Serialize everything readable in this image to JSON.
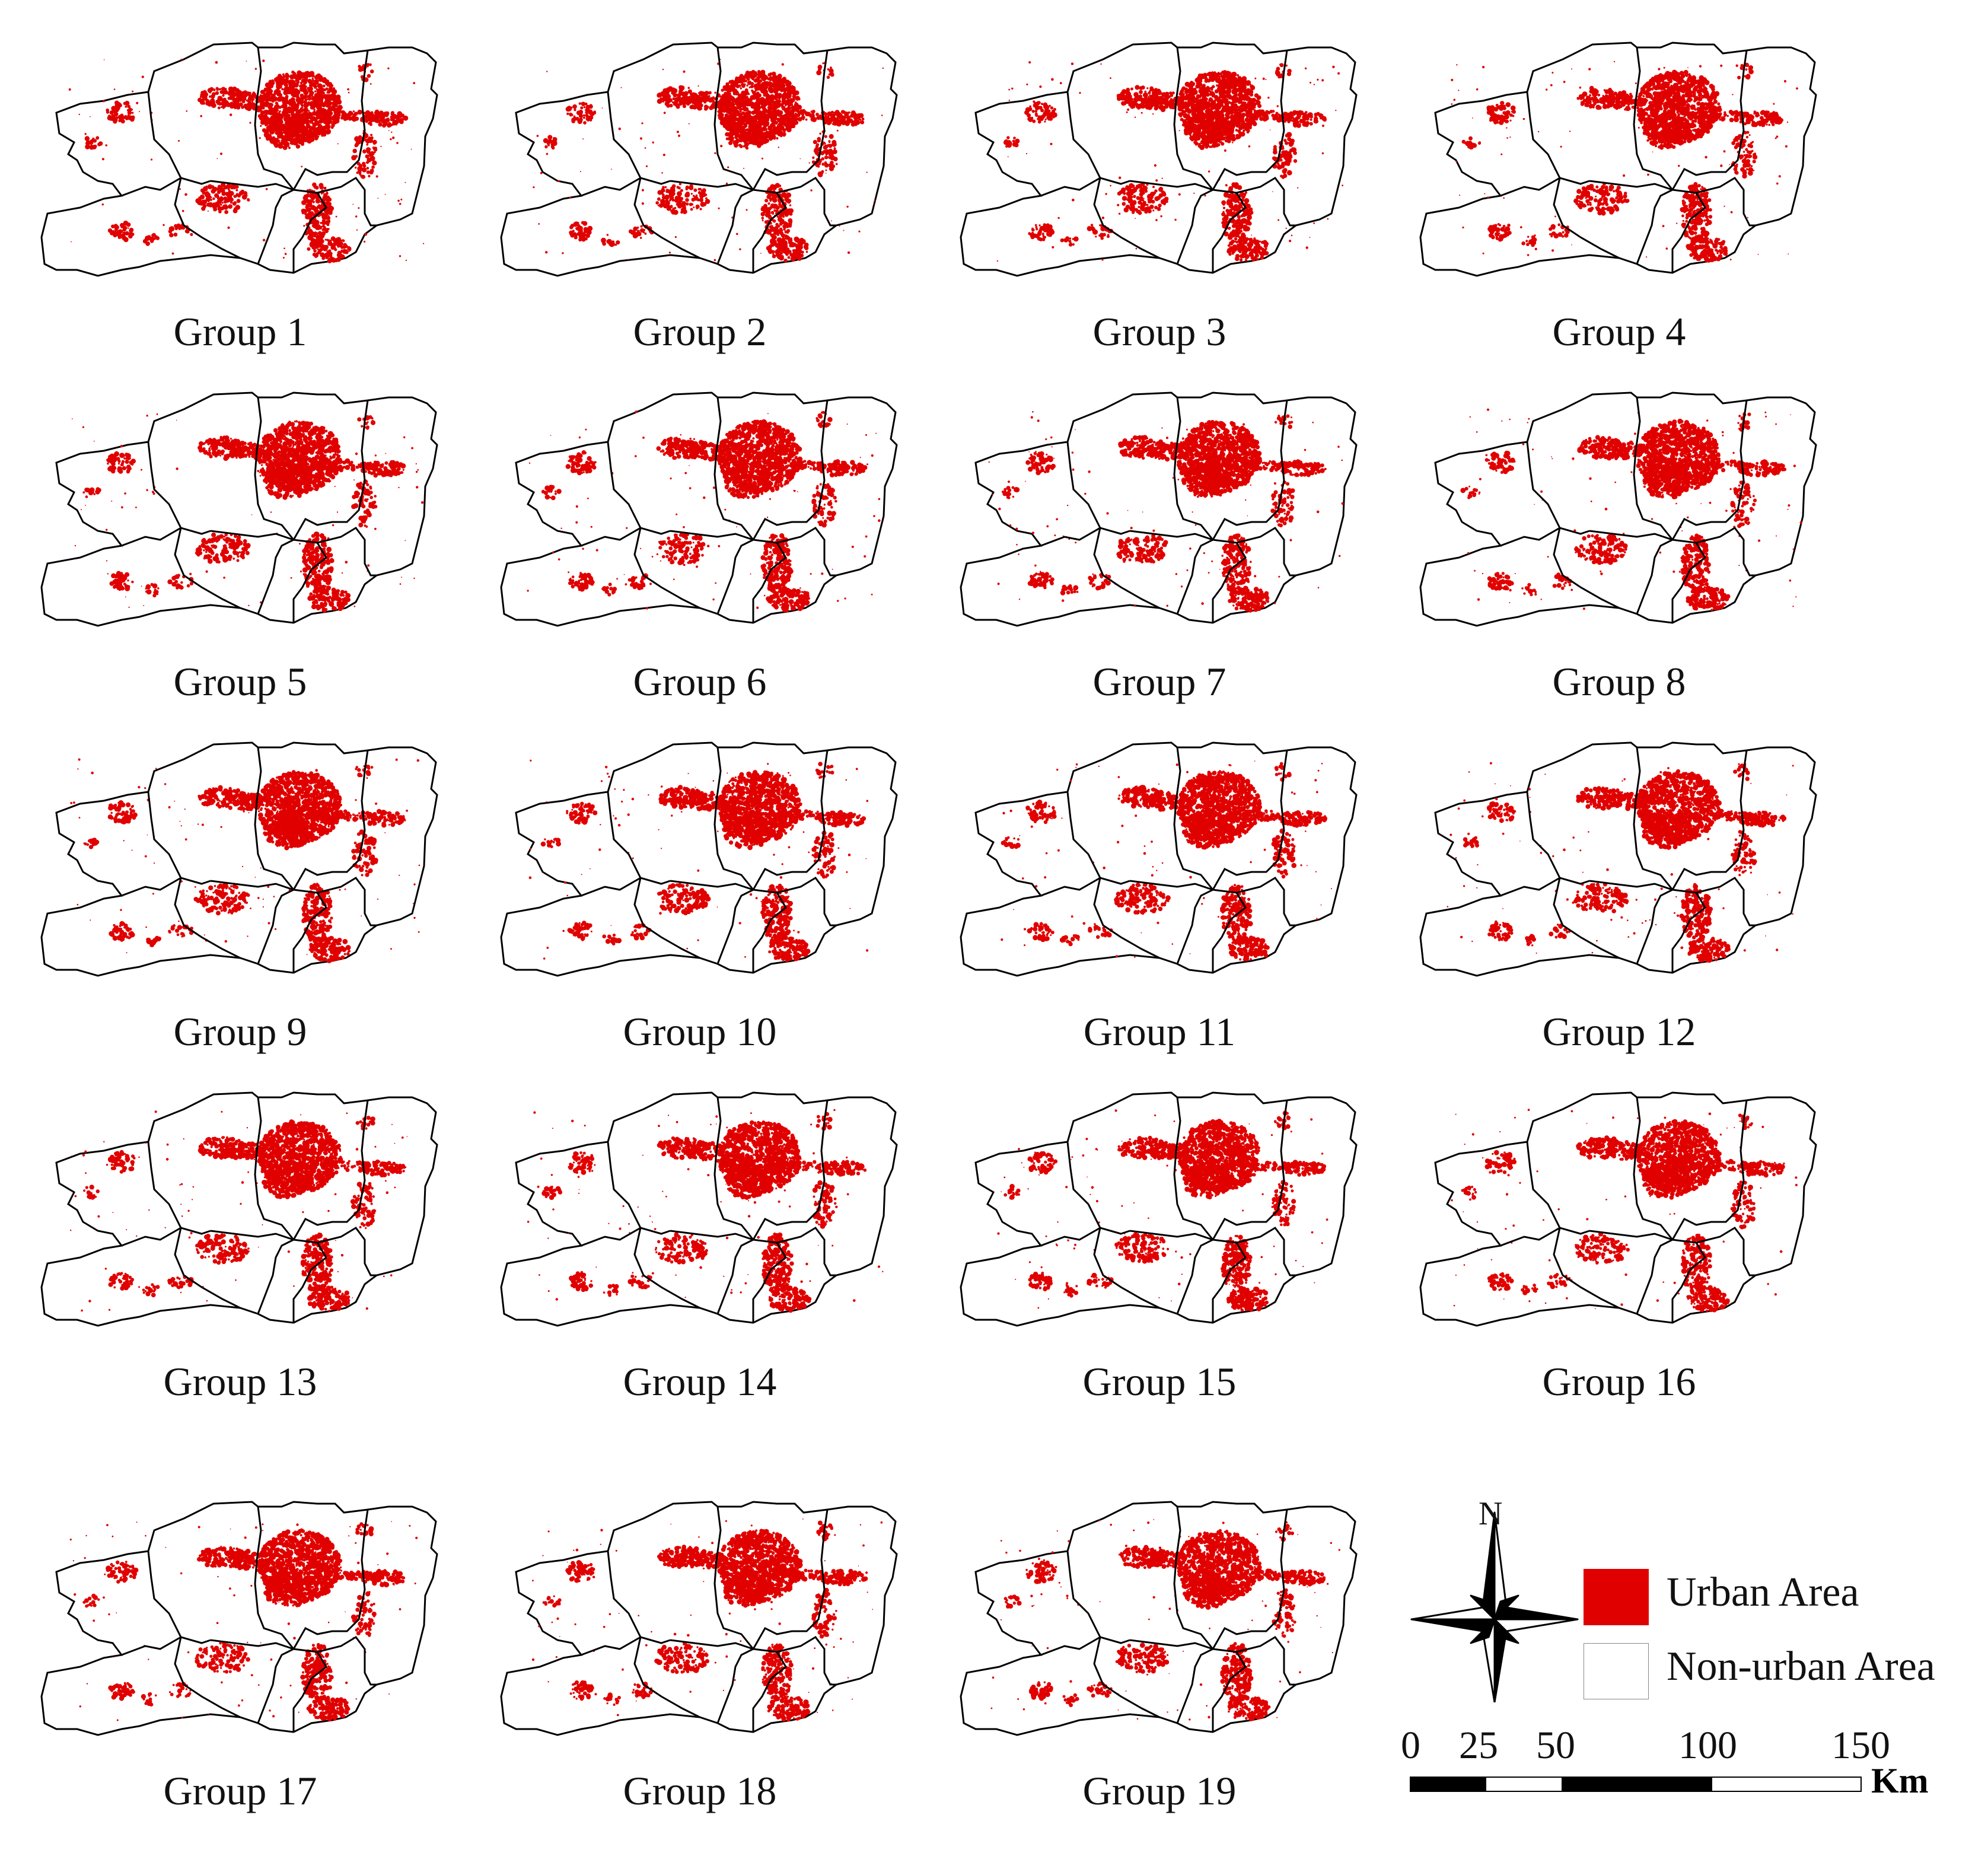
{
  "figure": {
    "maps": [
      {
        "caption": "Group 1"
      },
      {
        "caption": "Group 2"
      },
      {
        "caption": "Group 3"
      },
      {
        "caption": "Group 4"
      },
      {
        "caption": "Group 5"
      },
      {
        "caption": "Group 6"
      },
      {
        "caption": "Group 7"
      },
      {
        "caption": "Group 8"
      },
      {
        "caption": "Group 9"
      },
      {
        "caption": "Group 10"
      },
      {
        "caption": "Group 11"
      },
      {
        "caption": "Group 12"
      },
      {
        "caption": "Group 13"
      },
      {
        "caption": "Group 14"
      },
      {
        "caption": "Group 15"
      },
      {
        "caption": "Group 16"
      },
      {
        "caption": "Group 17"
      },
      {
        "caption": "Group 18"
      },
      {
        "caption": "Group 19"
      }
    ],
    "north_label": "N",
    "legend": [
      {
        "label": "Urban Area",
        "color": "#e00000"
      },
      {
        "label": "Non-urban Area",
        "color": "#ffffff"
      }
    ],
    "scale_bar": {
      "ticks": [
        "0",
        "25",
        "50",
        "100",
        "150"
      ],
      "unit": "Km"
    },
    "colors": {
      "urban": "#e00000",
      "boundary": "#000000"
    }
  }
}
